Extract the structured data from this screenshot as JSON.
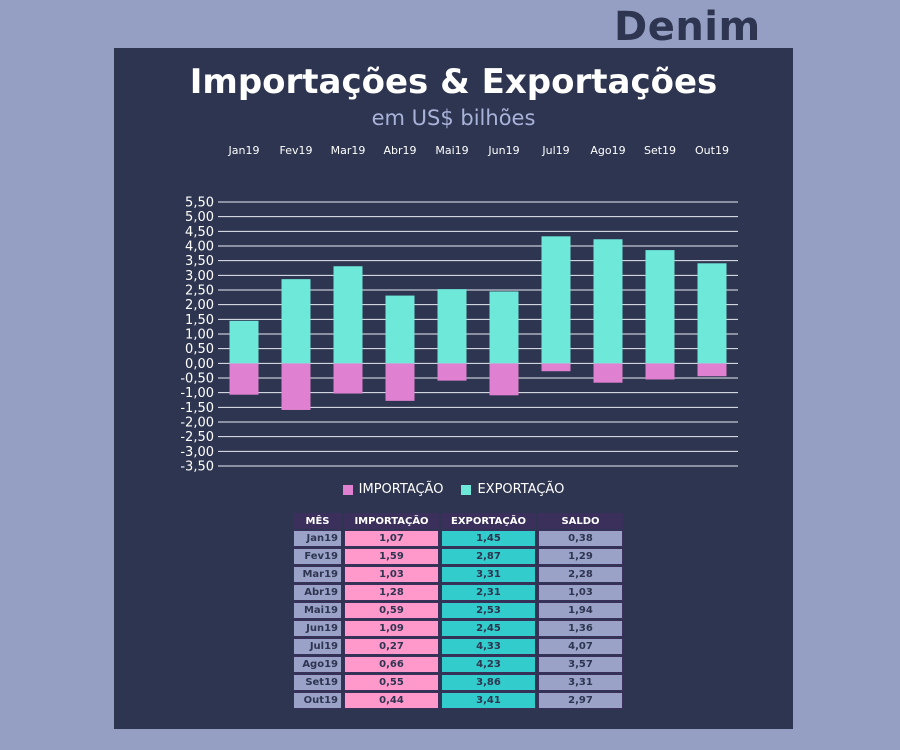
{
  "brand": "Denim",
  "chart_data": {
    "type": "bar",
    "title": "Importações & Exportações",
    "subtitle": "em US$ bilhões",
    "categories": [
      "Jan19",
      "Fev19",
      "Mar19",
      "Abr19",
      "Mai19",
      "Jun19",
      "Jul19",
      "Ago19",
      "Set19",
      "Out19"
    ],
    "series": [
      {
        "name": "IMPORTAÇÃO",
        "color": "#e080d0",
        "values": [
          -1.07,
          -1.59,
          -1.03,
          -1.28,
          -0.59,
          -1.09,
          -0.27,
          -0.66,
          -0.55,
          -0.44
        ]
      },
      {
        "name": "EXPORTAÇÃO",
        "color": "#6ee8d8",
        "values": [
          1.45,
          2.87,
          3.31,
          2.31,
          2.53,
          2.45,
          4.33,
          4.23,
          3.86,
          3.41
        ]
      }
    ],
    "ylim": [
      -3.5,
      5.5
    ],
    "yticks": [
      "5,50",
      "5,00",
      "4,50",
      "4,00",
      "3,50",
      "3,00",
      "2,50",
      "2,00",
      "1,50",
      "1,00",
      "0,50",
      "0,00",
      "-0,50",
      "-1,00",
      "-1,50",
      "-2,00",
      "-2,50",
      "-3,00",
      "-3,50"
    ],
    "grid": true,
    "legend": "bottom"
  },
  "table": {
    "headers": [
      "MÊS",
      "IMPORTAÇÃO",
      "EXPORTAÇÃO",
      "SALDO"
    ],
    "rows": [
      [
        "Jan19",
        "1,07",
        "1,45",
        "0,38"
      ],
      [
        "Fev19",
        "1,59",
        "2,87",
        "1,29"
      ],
      [
        "Mar19",
        "1,03",
        "3,31",
        "2,28"
      ],
      [
        "Abr19",
        "1,28",
        "2,31",
        "1,03"
      ],
      [
        "Mai19",
        "0,59",
        "2,53",
        "1,94"
      ],
      [
        "Jun19",
        "1,09",
        "2,45",
        "1,36"
      ],
      [
        "Jul19",
        "0,27",
        "4,33",
        "4,07"
      ],
      [
        "Ago19",
        "0,66",
        "4,23",
        "3,57"
      ],
      [
        "Set19",
        "0,55",
        "3,86",
        "3,31"
      ],
      [
        "Out19",
        "0,44",
        "3,41",
        "2,97"
      ]
    ]
  }
}
